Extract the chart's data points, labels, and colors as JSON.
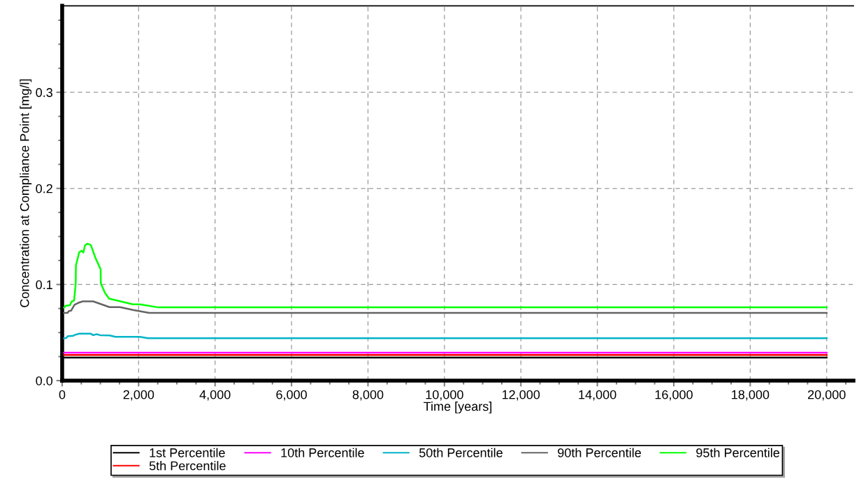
{
  "chart_data": {
    "type": "line",
    "xlabel": "Time [years]",
    "ylabel": "Concentration at Compliance Point [mg/l]",
    "xlim": [
      0,
      20700
    ],
    "xticks": [
      {
        "value": 0,
        "label": "0"
      },
      {
        "value": 2000,
        "label": "2,000"
      },
      {
        "value": 4000,
        "label": "4,000"
      },
      {
        "value": 6000,
        "label": "6,000"
      },
      {
        "value": 8000,
        "label": "8,000"
      },
      {
        "value": 10000,
        "label": "10,000"
      },
      {
        "value": 12000,
        "label": "12,000"
      },
      {
        "value": 14000,
        "label": "14,000"
      },
      {
        "value": 16000,
        "label": "16,000"
      },
      {
        "value": 18000,
        "label": "18,000"
      },
      {
        "value": 20000,
        "label": "20,000"
      }
    ],
    "ylim": [
      0,
      0.39
    ],
    "yticks": [
      {
        "value": 0,
        "label": "0.0"
      },
      0.1,
      0.2,
      0.3
    ],
    "grid": true,
    "legend": "bottom",
    "line_style": "solid",
    "marker": "none",
    "series": [
      {
        "name": "1st Percentile",
        "color": "#000000",
        "x": [
          50,
          20000
        ],
        "values": [
          0.024,
          0.024
        ]
      },
      {
        "name": "5th Percentile",
        "color": "#ff0000",
        "x": [
          50,
          20000
        ],
        "values": [
          0.0267,
          0.0267
        ]
      },
      {
        "name": "10th Percentile",
        "color": "#ff00ff",
        "x": [
          50,
          20000
        ],
        "values": [
          0.029,
          0.029
        ]
      },
      {
        "name": "50th Percentile",
        "color": "#00b4c8",
        "x": [
          50,
          110,
          140,
          293,
          311,
          445,
          750,
          811,
          902,
          994,
          1238,
          1390,
          2031,
          2244,
          20000
        ],
        "values": [
          0.0439,
          0.0444,
          0.0461,
          0.0466,
          0.0473,
          0.0488,
          0.0488,
          0.0473,
          0.0483,
          0.0473,
          0.0471,
          0.0456,
          0.0456,
          0.0442,
          0.0442
        ]
      },
      {
        "name": "90th Percentile",
        "color": "#646464",
        "x": [
          50,
          140,
          171,
          232,
          262,
          323,
          415,
          537,
          811,
          1238,
          1512,
          1848,
          2275,
          20000
        ],
        "values": [
          0.0704,
          0.0704,
          0.0723,
          0.0728,
          0.0748,
          0.0789,
          0.0808,
          0.0825,
          0.0825,
          0.0765,
          0.0765,
          0.0736,
          0.0704,
          0.0704
        ]
      },
      {
        "name": "95th Percentile",
        "color": "#00ff00",
        "x": [
          50,
          91,
          201,
          250,
          311,
          354,
          360,
          445,
          506,
          555,
          598,
          659,
          750,
          872,
          1006,
          1012,
          1116,
          1226,
          1848,
          2031,
          2518,
          20000
        ],
        "values": [
          0.076,
          0.0779,
          0.0784,
          0.0823,
          0.0833,
          0.1008,
          0.1197,
          0.1335,
          0.1352,
          0.1333,
          0.1408,
          0.1425,
          0.1411,
          0.1275,
          0.1158,
          0.1012,
          0.0915,
          0.0854,
          0.0794,
          0.0794,
          0.0762,
          0.0762
        ]
      }
    ]
  }
}
